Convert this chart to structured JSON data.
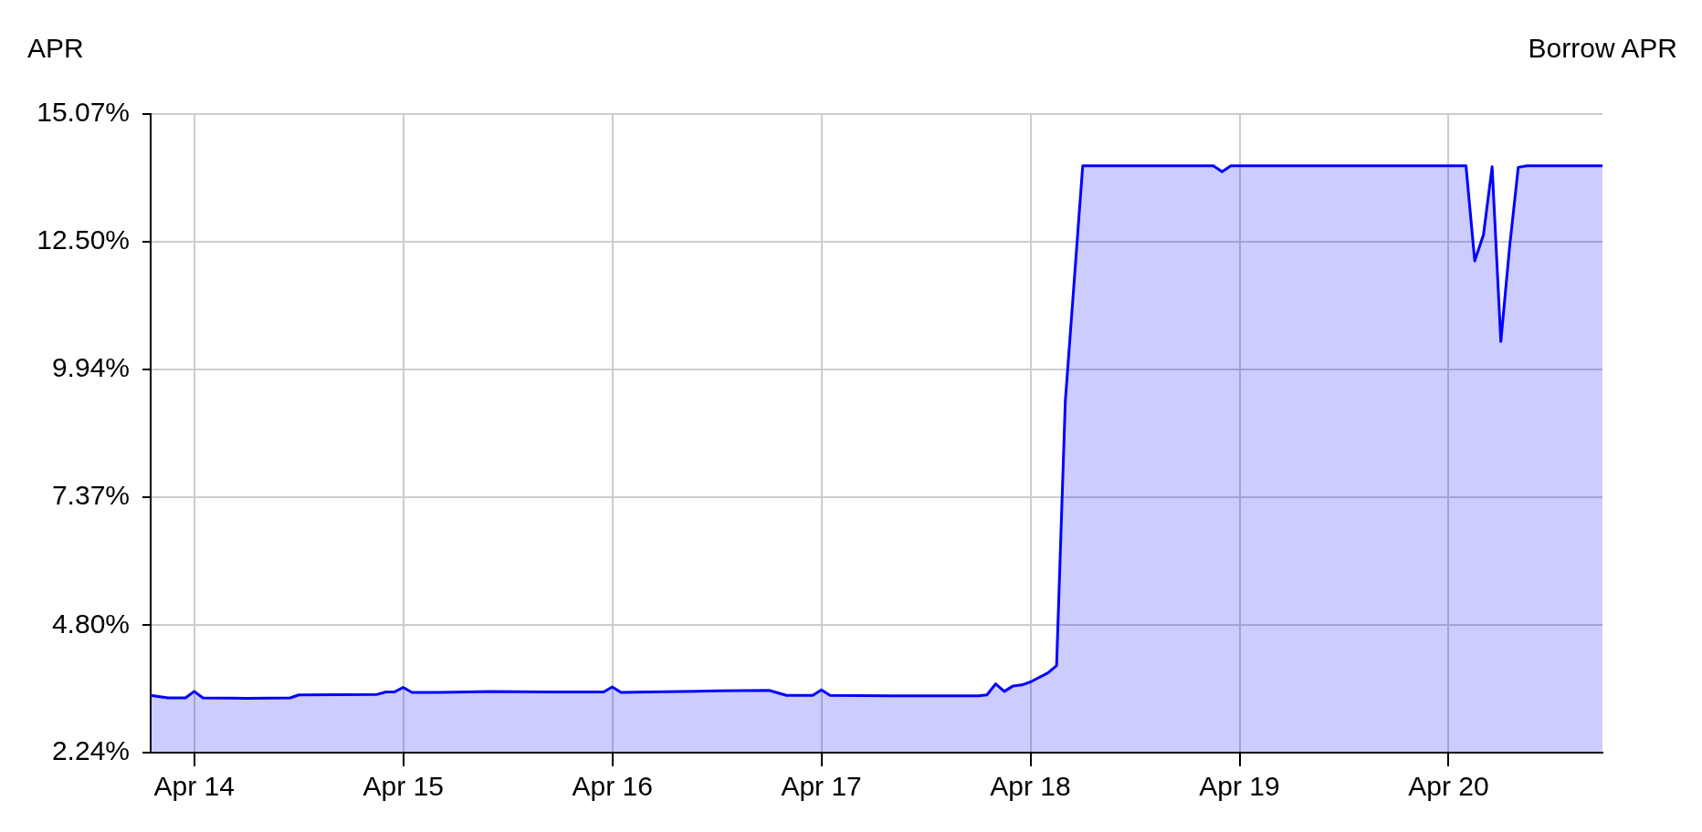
{
  "chart_data": {
    "type": "area",
    "title": "Borrow APR",
    "ylabel": "APR",
    "x": [
      "--04-13T19:00",
      "--04-13T21:00",
      "--04-13T23:00",
      "--04-14T00:00",
      "--04-14T01:00",
      "--04-14T06:00",
      "--04-14T11:00",
      "--04-14T12:00",
      "--04-14T21:00",
      "--04-14T22:00",
      "--04-14T23:00",
      "--04-15T00:00",
      "--04-15T01:00",
      "--04-15T04:00",
      "--04-15T10:00",
      "--04-15T17:00",
      "--04-15T23:00",
      "--04-16T00:00",
      "--04-16T01:00",
      "--04-16T04:00",
      "--04-16T12:00",
      "--04-16T18:00",
      "--04-16T20:00",
      "--04-16T23:00",
      "--04-17T00:00",
      "--04-17T01:00",
      "--04-17T08:00",
      "--04-17T18:00",
      "--04-17T19:00",
      "--04-17T20:00",
      "--04-17T21:00",
      "--04-17T22:00",
      "--04-17T23:00",
      "--04-18T00:00",
      "--04-18T02:00",
      "--04-18T03:00",
      "--04-18T04:00",
      "--04-18T06:00",
      "--04-18T21:00",
      "--04-18T22:00",
      "--04-18T23:00",
      "--04-20T02:00",
      "--04-20T03:00",
      "--04-20T04:00",
      "--04-20T05:00",
      "--04-20T06:00",
      "--04-20T07:00",
      "--04-20T08:00",
      "--04-20T09:00",
      "--04-20T17:40"
    ],
    "values": [
      3.39,
      3.34,
      3.34,
      3.47,
      3.34,
      3.33,
      3.34,
      3.4,
      3.41,
      3.46,
      3.46,
      3.55,
      3.45,
      3.45,
      3.47,
      3.46,
      3.46,
      3.56,
      3.45,
      3.46,
      3.48,
      3.49,
      3.39,
      3.39,
      3.5,
      3.39,
      3.38,
      3.38,
      3.4,
      3.62,
      3.47,
      3.58,
      3.6,
      3.66,
      3.84,
      3.99,
      9.3,
      14.03,
      14.03,
      13.91,
      14.03,
      14.03,
      12.12,
      12.64,
      14.01,
      10.5,
      12.39,
      14.0,
      14.03,
      14.03
    ],
    "color": "#0000ff",
    "marker": "none",
    "grid": true,
    "xlim": [
      "--04-13T19:00",
      "--04-20T17:40"
    ],
    "xticks": [
      {
        "value": "--04-14",
        "label": "Apr 14"
      },
      {
        "value": "--04-15",
        "label": "Apr 15"
      },
      {
        "value": "--04-16",
        "label": "Apr 16"
      },
      {
        "value": "--04-17",
        "label": "Apr 17"
      },
      {
        "value": "--04-18",
        "label": "Apr 18"
      },
      {
        "value": "--04-19",
        "label": "Apr 19"
      },
      {
        "value": "--04-20",
        "label": "Apr 20"
      }
    ],
    "ylim": [
      2.24,
      15.07
    ],
    "yticks": [
      {
        "value": 2.24,
        "label": "2.24%"
      },
      {
        "value": 4.8,
        "label": "4.80%"
      },
      {
        "value": 7.37,
        "label": "7.37%"
      },
      {
        "value": 9.94,
        "label": "9.94%"
      },
      {
        "value": 12.5,
        "label": "12.50%"
      },
      {
        "value": 15.07,
        "label": "15.07%"
      }
    ]
  }
}
